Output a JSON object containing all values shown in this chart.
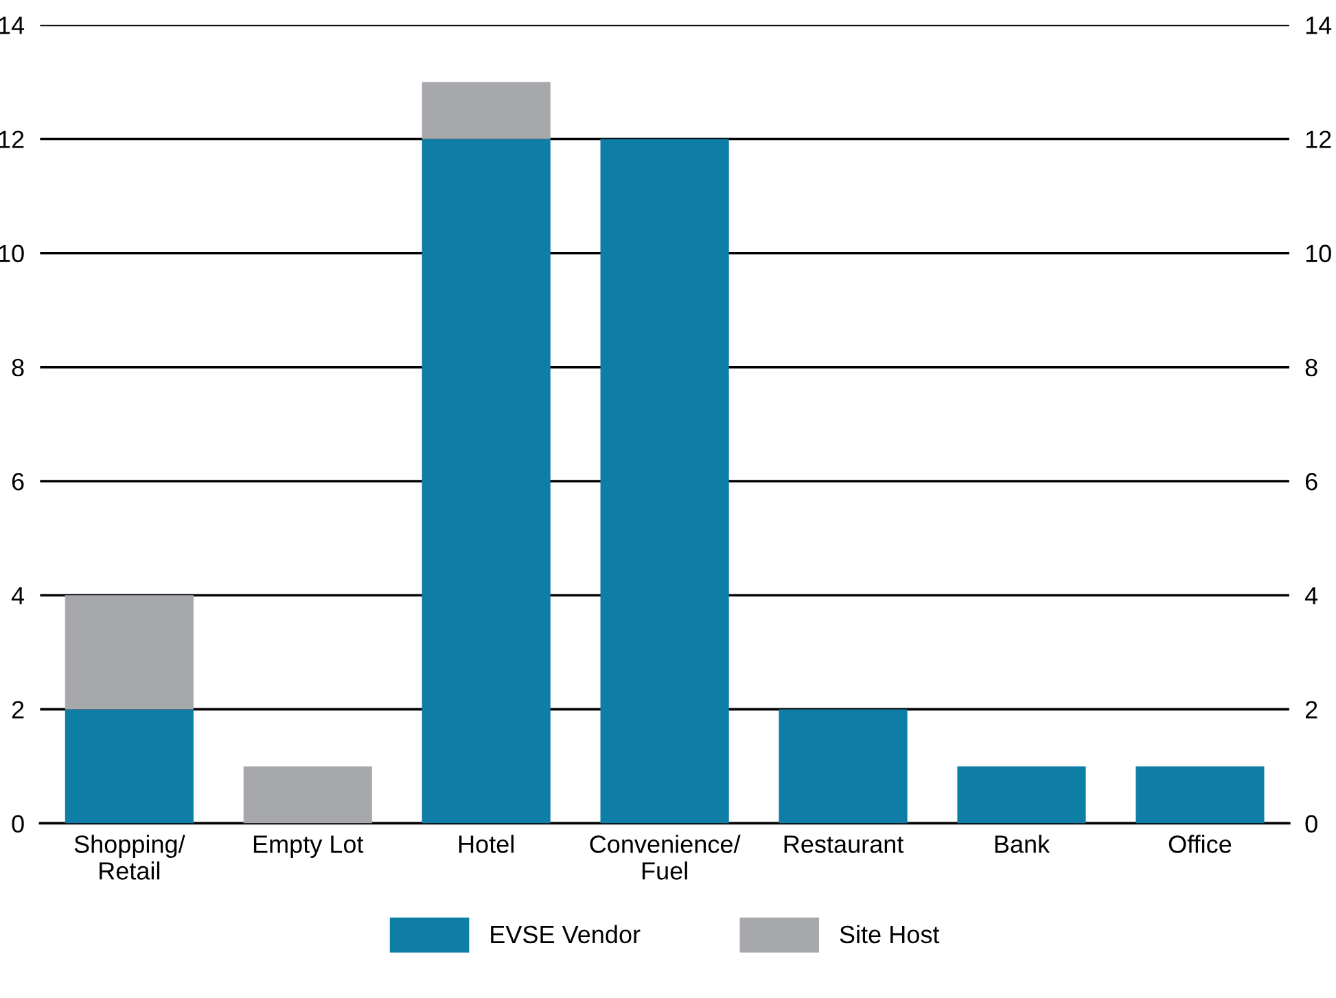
{
  "chart_data": {
    "type": "bar",
    "stacked": true,
    "categories": [
      "Shopping/\nRetail",
      "Empty Lot",
      "Hotel",
      "Convenience/\nFuel",
      "Restaurant",
      "Bank",
      "Office"
    ],
    "series": [
      {
        "name": "EVSE Vendor",
        "color": "#0e7ea6",
        "values": [
          2,
          0,
          12,
          12,
          2,
          1,
          1
        ]
      },
      {
        "name": "Site Host",
        "color": "#a6a8ab",
        "values": [
          2,
          1,
          1,
          0,
          0,
          0,
          0
        ]
      }
    ],
    "ylim": [
      0,
      14
    ],
    "yticks": [
      0,
      2,
      4,
      6,
      8,
      10,
      12,
      14
    ],
    "y2lim": [
      0,
      14
    ],
    "y2ticks": [
      0,
      2,
      4,
      6,
      8,
      10,
      12,
      14
    ],
    "grid": "y",
    "legend": "bottom"
  }
}
